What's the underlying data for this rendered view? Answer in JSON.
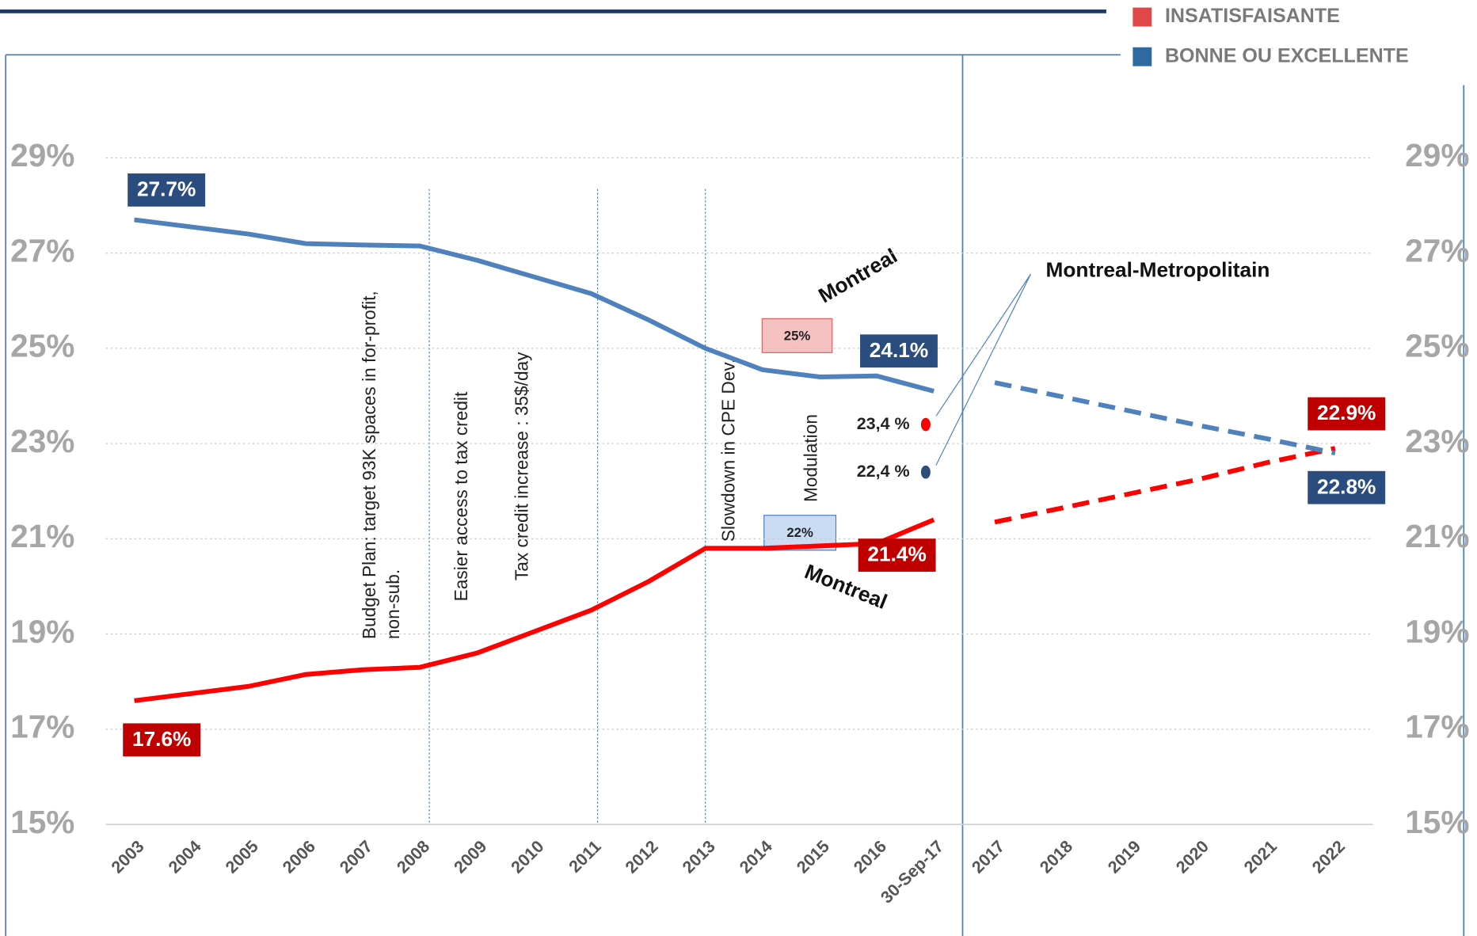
{
  "chart_data": {
    "type": "line",
    "legend": {
      "position": "top-right"
    },
    "categories": [
      "2003",
      "2004",
      "2005",
      "2006",
      "2007",
      "2008",
      "2009",
      "2010",
      "2011",
      "2012",
      "2013",
      "2014",
      "2015",
      "2016",
      "30-Sep-17",
      "2017",
      "2018",
      "2019",
      "2020",
      "2021",
      "2022"
    ],
    "series": [
      {
        "name": "INSATISFAISANTE",
        "color": "#ff0000",
        "legend_color": "#e04848",
        "values": [
          17.6,
          17.75,
          17.9,
          18.15,
          18.25,
          18.3,
          18.6,
          19.05,
          19.5,
          20.1,
          20.8,
          20.8,
          20.85,
          20.9,
          21.4,
          null,
          null,
          null,
          null,
          null,
          null
        ],
        "value_labels": [
          "17.6%",
          null,
          null,
          null,
          null,
          null,
          null,
          null,
          null,
          null,
          null,
          null,
          null,
          null,
          "21.4%",
          null,
          null,
          null,
          null,
          null,
          null
        ],
        "projection": [
          null,
          null,
          null,
          null,
          null,
          null,
          null,
          null,
          null,
          null,
          null,
          null,
          null,
          null,
          null,
          21.35,
          21.65,
          21.95,
          22.25,
          22.6,
          22.9
        ],
        "projection_labels": [
          null,
          null,
          null,
          null,
          null,
          null,
          null,
          null,
          null,
          null,
          null,
          null,
          null,
          null,
          null,
          null,
          null,
          null,
          null,
          null,
          "22.9%"
        ]
      },
      {
        "name": "BONNE OU EXCELLENTE",
        "color": "#4f81bd",
        "legend_color": "#2e6aa0",
        "values": [
          27.7,
          27.55,
          27.4,
          27.2,
          27.17,
          27.15,
          26.85,
          26.5,
          26.15,
          25.6,
          25.0,
          24.55,
          24.4,
          24.42,
          24.1,
          null,
          null,
          null,
          null,
          null,
          null
        ],
        "value_labels": [
          "27.7%",
          null,
          null,
          null,
          null,
          null,
          null,
          null,
          null,
          null,
          null,
          null,
          null,
          null,
          "24.1%",
          null,
          null,
          null,
          null,
          null,
          null
        ],
        "projection": [
          null,
          null,
          null,
          null,
          null,
          null,
          null,
          null,
          null,
          null,
          null,
          null,
          null,
          null,
          null,
          24.28,
          23.98,
          23.68,
          23.38,
          23.1,
          22.8
        ],
        "projection_labels": [
          null,
          null,
          null,
          null,
          null,
          null,
          null,
          null,
          null,
          null,
          null,
          null,
          null,
          null,
          null,
          null,
          null,
          null,
          null,
          null,
          "22.8%"
        ]
      }
    ],
    "ylim": [
      15,
      29
    ],
    "yticks": [
      {
        "value": 15,
        "label": "15%"
      },
      {
        "value": 17,
        "label": "17%"
      },
      {
        "value": 19,
        "label": "19%"
      },
      {
        "value": 21,
        "label": "21%"
      },
      {
        "value": 23,
        "label": "23%"
      },
      {
        "value": 25,
        "label": "25%"
      },
      {
        "value": 27,
        "label": "27%"
      },
      {
        "value": 29,
        "label": "29%"
      }
    ],
    "grid": true,
    "events": [
      {
        "lines": [
          "Budget Plan: target 93K spaces in for-profit,",
          "non-sub."
        ]
      },
      {
        "lines": [
          "Easier access to tax credit"
        ]
      },
      {
        "lines": [
          "Tax credit increase : 35$/day"
        ]
      },
      {
        "lines": [
          "Slowdown in CPE Dev."
        ]
      },
      {
        "lines": [
          "Modulation"
        ]
      }
    ],
    "region_labels": [
      "Montreal",
      "Montreal"
    ],
    "boxes": [
      "25%",
      "22%"
    ],
    "metro": {
      "title": "Montreal-Metropolitain",
      "points": [
        {
          "label": "23,4 %",
          "value": 23.4,
          "series": 0
        },
        {
          "label": "22,4 %",
          "value": 22.4,
          "series": 1
        }
      ]
    }
  }
}
